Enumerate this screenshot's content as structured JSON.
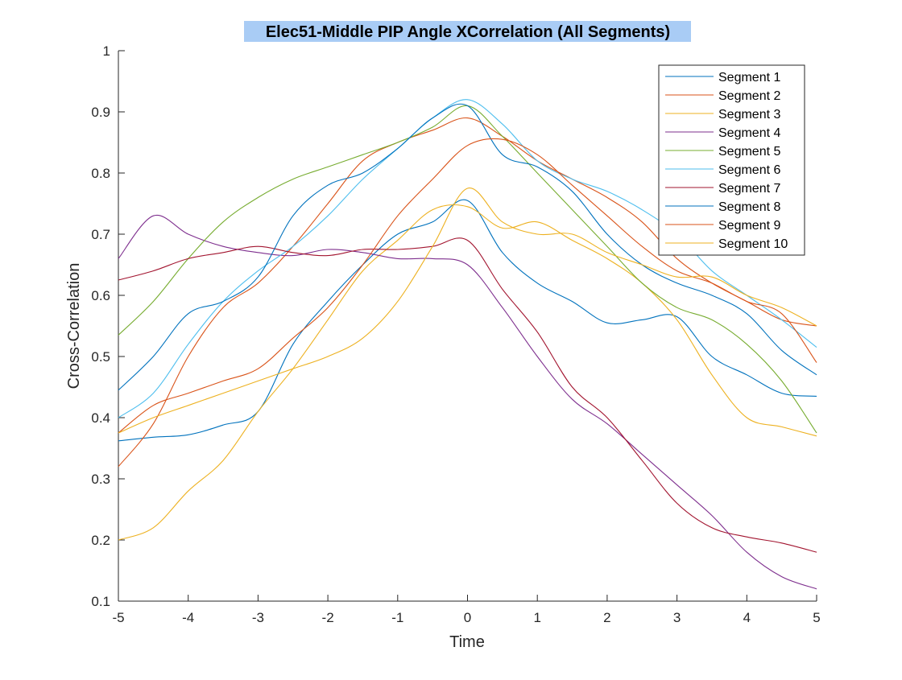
{
  "chart_data": {
    "type": "line",
    "title": "Elec51-Middle PIP Angle XCorrelation (All Segments)",
    "xlabel": "Time",
    "ylabel": "Cross-Correlation",
    "xlim": [
      -5,
      5
    ],
    "ylim": [
      0.1,
      1
    ],
    "xticks": [
      -5,
      -4,
      -3,
      -2,
      -1,
      0,
      1,
      2,
      3,
      4,
      5
    ],
    "yticks": [
      0.1,
      0.2,
      0.3,
      0.4,
      0.5,
      0.6,
      0.7,
      0.8,
      0.9,
      1
    ],
    "grid": false,
    "legend_position": "top-right",
    "x": [
      -5,
      -4.5,
      -4,
      -3.5,
      -3,
      -2.5,
      -2,
      -1.5,
      -1,
      -0.5,
      0,
      0.5,
      1,
      1.5,
      2,
      2.5,
      3,
      3.5,
      4,
      4.5,
      5
    ],
    "series": [
      {
        "name": "Segment 1",
        "color": "#0072BD",
        "values": [
          0.362,
          0.368,
          0.372,
          0.388,
          0.41,
          0.52,
          0.59,
          0.65,
          0.7,
          0.72,
          0.755,
          0.67,
          0.62,
          0.59,
          0.555,
          0.56,
          0.565,
          0.5,
          0.47,
          0.44,
          0.435
        ]
      },
      {
        "name": "Segment 2",
        "color": "#D95319",
        "values": [
          0.32,
          0.39,
          0.5,
          0.58,
          0.62,
          0.68,
          0.75,
          0.82,
          0.85,
          0.87,
          0.89,
          0.86,
          0.82,
          0.79,
          0.76,
          0.72,
          0.66,
          0.62,
          0.59,
          0.56,
          0.55
        ]
      },
      {
        "name": "Segment 3",
        "color": "#EDB120",
        "values": [
          0.2,
          0.22,
          0.28,
          0.33,
          0.41,
          0.48,
          0.56,
          0.64,
          0.69,
          0.74,
          0.745,
          0.71,
          0.72,
          0.69,
          0.66,
          0.62,
          0.56,
          0.47,
          0.4,
          0.385,
          0.37
        ]
      },
      {
        "name": "Segment 4",
        "color": "#7E2F8E",
        "values": [
          0.66,
          0.73,
          0.7,
          0.68,
          0.67,
          0.665,
          0.675,
          0.67,
          0.66,
          0.66,
          0.65,
          0.58,
          0.5,
          0.43,
          0.39,
          0.34,
          0.29,
          0.24,
          0.18,
          0.14,
          0.12
        ]
      },
      {
        "name": "Segment 5",
        "color": "#77AC30",
        "values": [
          0.535,
          0.59,
          0.66,
          0.72,
          0.76,
          0.79,
          0.81,
          0.83,
          0.85,
          0.875,
          0.91,
          0.86,
          0.8,
          0.74,
          0.68,
          0.62,
          0.58,
          0.56,
          0.52,
          0.46,
          0.375
        ]
      },
      {
        "name": "Segment 6",
        "color": "#4DBEEE",
        "values": [
          0.4,
          0.44,
          0.52,
          0.59,
          0.64,
          0.68,
          0.73,
          0.79,
          0.84,
          0.89,
          0.92,
          0.88,
          0.82,
          0.79,
          0.77,
          0.74,
          0.7,
          0.64,
          0.6,
          0.56,
          0.515
        ]
      },
      {
        "name": "Segment 7",
        "color": "#A2142F",
        "values": [
          0.625,
          0.64,
          0.66,
          0.67,
          0.68,
          0.67,
          0.665,
          0.675,
          0.675,
          0.68,
          0.69,
          0.61,
          0.54,
          0.45,
          0.4,
          0.33,
          0.26,
          0.22,
          0.205,
          0.195,
          0.18
        ]
      },
      {
        "name": "Segment 8",
        "color": "#0072BD",
        "values": [
          0.445,
          0.5,
          0.57,
          0.59,
          0.63,
          0.73,
          0.78,
          0.8,
          0.84,
          0.89,
          0.91,
          0.83,
          0.81,
          0.77,
          0.7,
          0.65,
          0.62,
          0.6,
          0.57,
          0.51,
          0.47
        ]
      },
      {
        "name": "Segment 9",
        "color": "#D95319",
        "values": [
          0.375,
          0.42,
          0.44,
          0.46,
          0.48,
          0.53,
          0.58,
          0.65,
          0.73,
          0.79,
          0.845,
          0.855,
          0.83,
          0.78,
          0.73,
          0.68,
          0.64,
          0.62,
          0.59,
          0.57,
          0.49
        ]
      },
      {
        "name": "Segment 10",
        "color": "#EDB120",
        "values": [
          0.375,
          0.4,
          0.42,
          0.44,
          0.46,
          0.48,
          0.5,
          0.53,
          0.59,
          0.68,
          0.775,
          0.72,
          0.7,
          0.7,
          0.67,
          0.65,
          0.63,
          0.63,
          0.6,
          0.58,
          0.55
        ]
      }
    ]
  }
}
